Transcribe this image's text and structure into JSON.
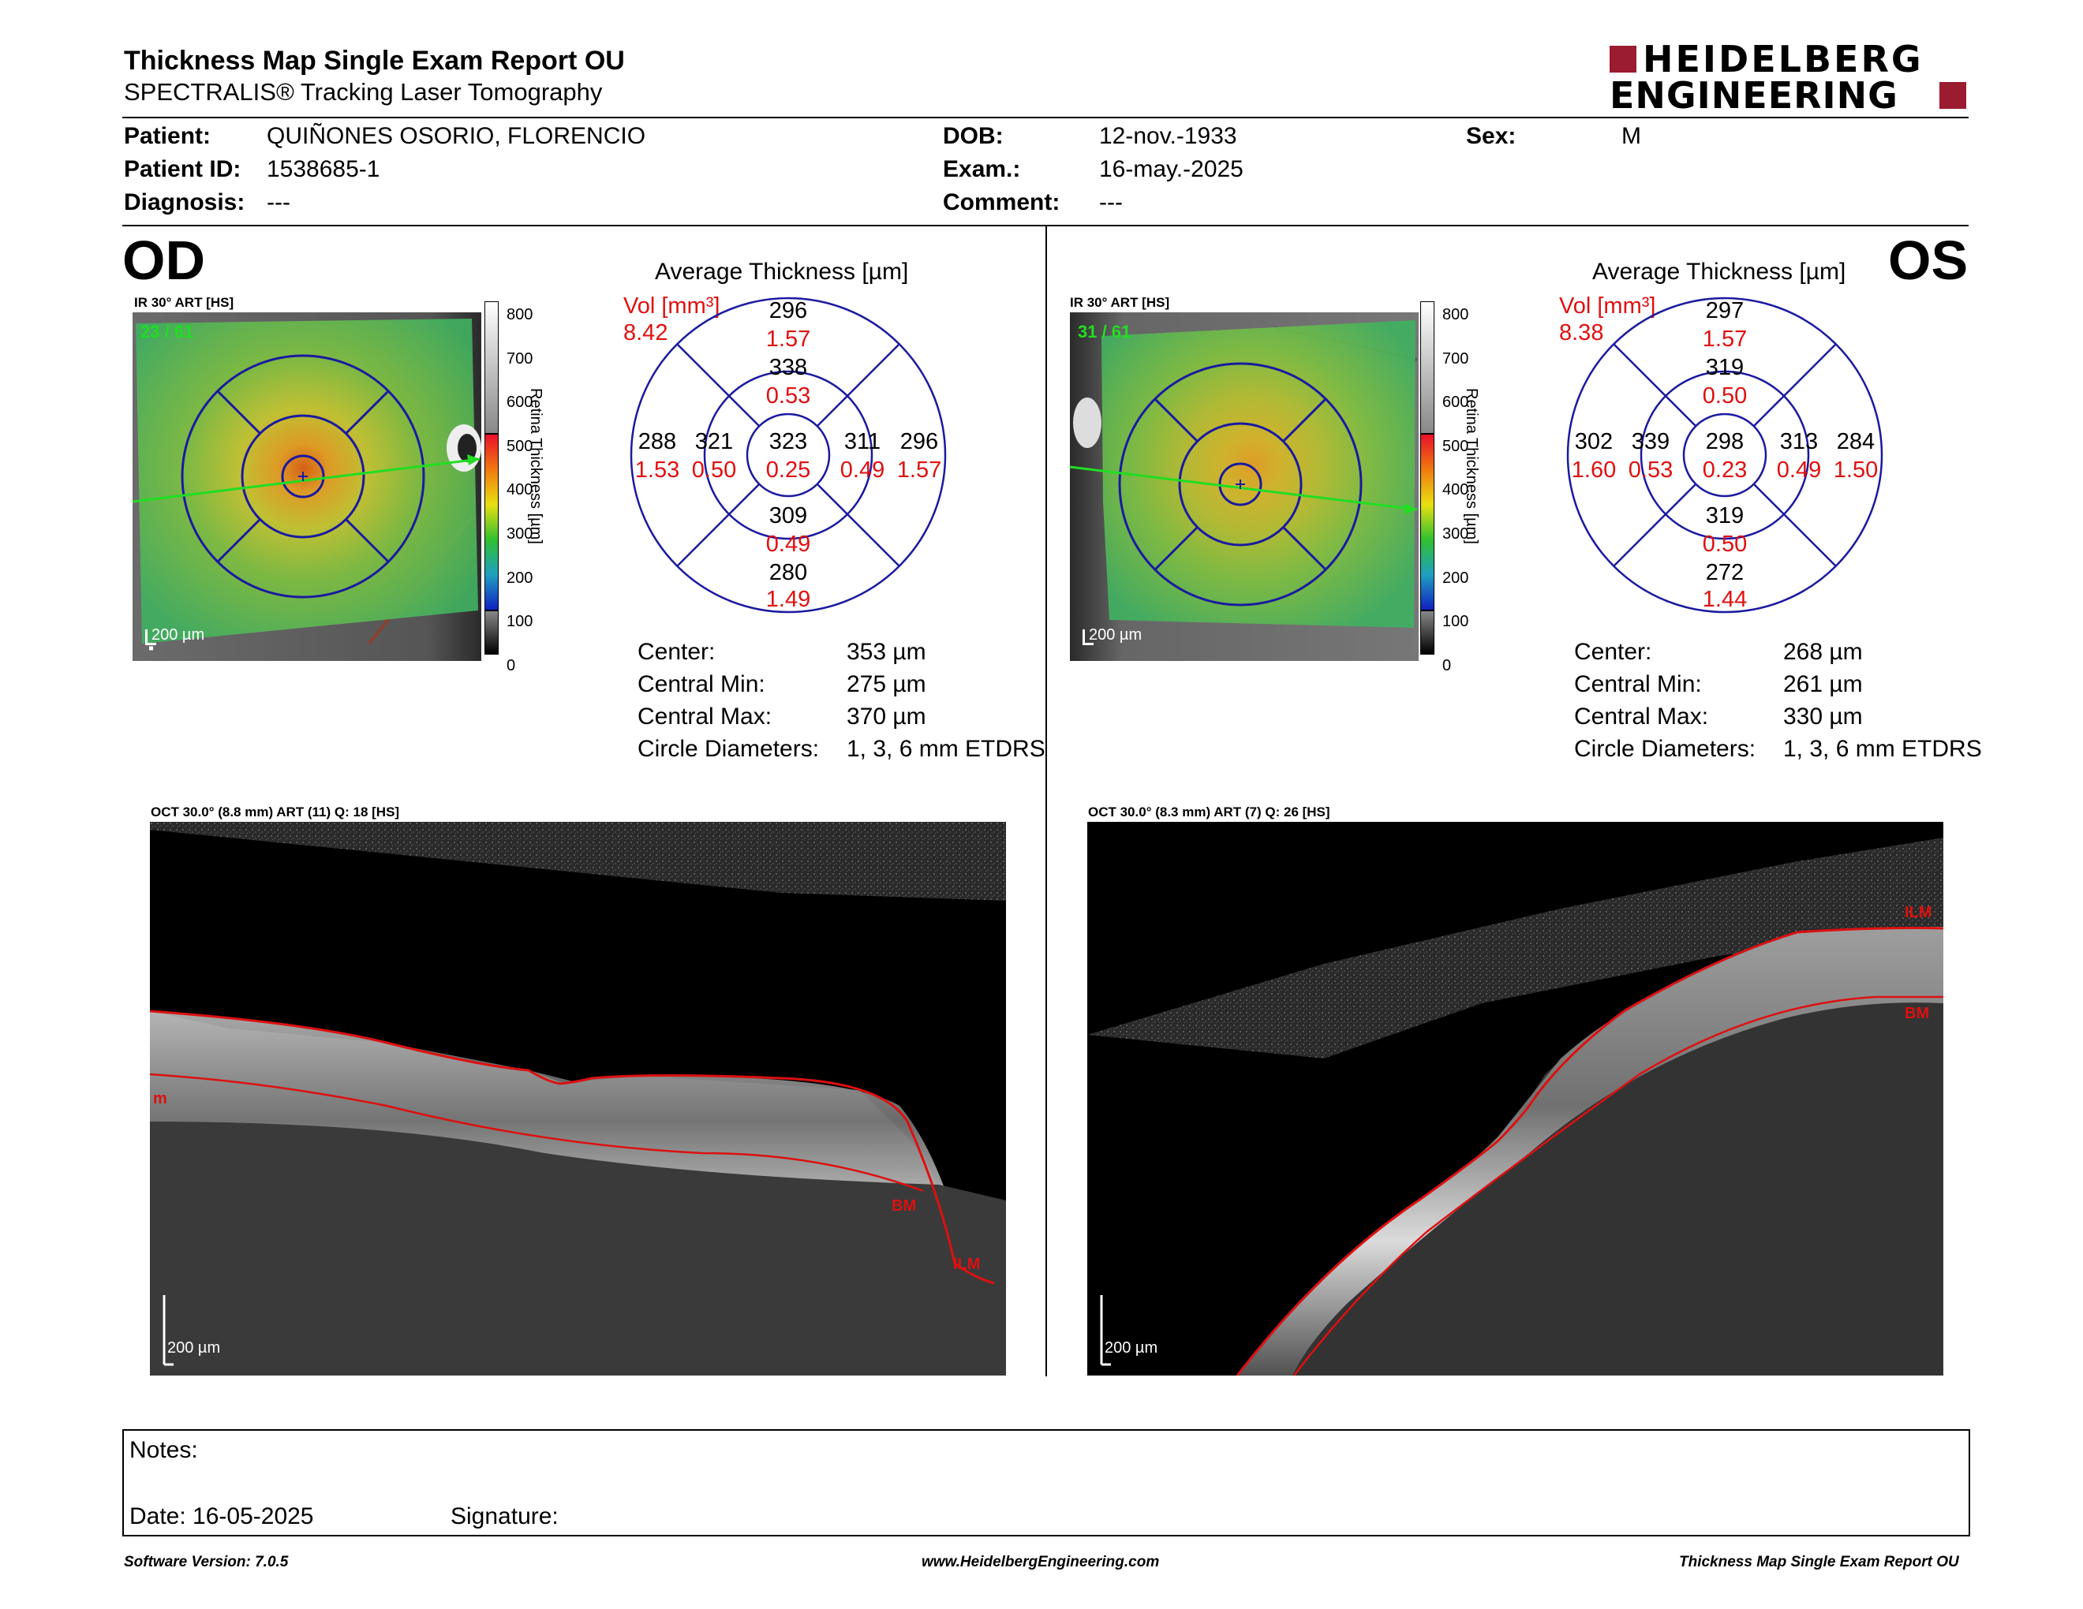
{
  "header": {
    "title": "Thickness Map Single Exam Report OU",
    "subtitle": "SPECTRALIS® Tracking Laser Tomography",
    "logo_line1": "HEIDELBERG",
    "logo_line2": "ENGINEERING"
  },
  "patient": {
    "patient_label": "Patient:",
    "patient_value": "QUIÑONES OSORIO, FLORENCIO",
    "id_label": "Patient ID:",
    "id_value": "1538685-1",
    "diagnosis_label": "Diagnosis:",
    "diagnosis_value": "---",
    "dob_label": "DOB:",
    "dob_value": "12-nov.-1933",
    "exam_label": "Exam.:",
    "exam_value": "16-may.-2025",
    "comment_label": "Comment:",
    "comment_value": "---",
    "sex_label": "Sex:",
    "sex_value": "M"
  },
  "colors": {
    "accent": "#9b1b30",
    "ring": "#1a1aa0",
    "red": "#e01010",
    "green": "#22dd22"
  },
  "od": {
    "eye": "OD",
    "ir_label": "IR 30° ART [HS]",
    "frame": "23 / 61",
    "scale": "200 µm",
    "colorbar_label": "Retina Thickness [µm]",
    "colorbar_ticks": [
      "800",
      "700",
      "600",
      "500",
      "400",
      "300",
      "200",
      "100",
      "0"
    ],
    "avg_title": "Average Thickness [µm]",
    "vol_label": "Vol [mm³]",
    "vol_value": "8.42",
    "sectors": {
      "top_outer": "296",
      "top_outer_v": "1.57",
      "top_inner": "338",
      "top_inner_v": "0.53",
      "center": "323",
      "center_v": "0.25",
      "left_outer": "288",
      "left_outer_v": "1.53",
      "left_inner": "321",
      "left_inner_v": "0.50",
      "right_inner": "311",
      "right_inner_v": "0.49",
      "right_outer": "296",
      "right_outer_v": "1.57",
      "bottom_inner": "309",
      "bottom_inner_v": "0.49",
      "bottom_outer": "280",
      "bottom_outer_v": "1.49"
    },
    "stats": {
      "center_label": "Center:",
      "center_value": "353 µm",
      "min_label": "Central Min:",
      "min_value": "275 µm",
      "max_label": "Central Max:",
      "max_value": "370 µm",
      "diam_label": "Circle Diameters:",
      "diam_value": "1, 3, 6 mm ETDRS"
    },
    "oct_label": "OCT 30.0° (8.8 mm) ART (11) Q: 18 [HS]",
    "oct_scale": "200 µm",
    "oct_tags": {
      "ilm": "ILM",
      "bm": "BM",
      "left": "m"
    }
  },
  "os": {
    "eye": "OS",
    "ir_label": "IR 30° ART [HS]",
    "frame": "31 / 61",
    "scale": "200 µm",
    "colorbar_label": "Retina Thickness [µm]",
    "colorbar_ticks": [
      "800",
      "700",
      "600",
      "500",
      "400",
      "300",
      "200",
      "100",
      "0"
    ],
    "avg_title": "Average Thickness [µm]",
    "vol_label": "Vol [mm³]",
    "vol_value": "8.38",
    "sectors": {
      "top_outer": "297",
      "top_outer_v": "1.57",
      "top_inner": "319",
      "top_inner_v": "0.50",
      "center": "298",
      "center_v": "0.23",
      "left_outer": "302",
      "left_outer_v": "1.60",
      "left_inner": "339",
      "left_inner_v": "0.53",
      "right_inner": "313",
      "right_inner_v": "0.49",
      "right_outer": "284",
      "right_outer_v": "1.50",
      "bottom_inner": "319",
      "bottom_inner_v": "0.50",
      "bottom_outer": "272",
      "bottom_outer_v": "1.44"
    },
    "stats": {
      "center_label": "Center:",
      "center_value": "268 µm",
      "min_label": "Central Min:",
      "min_value": "261 µm",
      "max_label": "Central Max:",
      "max_value": "330 µm",
      "diam_label": "Circle Diameters:",
      "diam_value": "1, 3, 6 mm ETDRS"
    },
    "oct_label": "OCT 30.0° (8.3 mm) ART (7) Q: 26 [HS]",
    "oct_scale": "200 µm",
    "oct_tags": {
      "ilm": "ILM",
      "bm": "BM"
    }
  },
  "notes": {
    "notes_label": "Notes:",
    "date_label": "Date: 16-05-2025",
    "signature_label": "Signature:"
  },
  "footer": {
    "software": "Software Version: 7.0.5",
    "website": "www.HeidelbergEngineering.com",
    "report": "Thickness Map Single Exam Report OU"
  }
}
